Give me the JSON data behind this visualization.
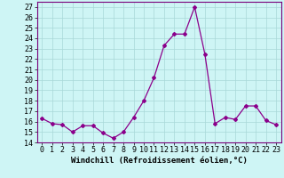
{
  "x": [
    0,
    1,
    2,
    3,
    4,
    5,
    6,
    7,
    8,
    9,
    10,
    11,
    12,
    13,
    14,
    15,
    16,
    17,
    18,
    19,
    20,
    21,
    22,
    23
  ],
  "y": [
    16.3,
    15.8,
    15.7,
    15.0,
    15.6,
    15.6,
    14.9,
    14.4,
    15.0,
    16.4,
    18.0,
    20.2,
    23.3,
    24.4,
    24.4,
    27.0,
    22.5,
    15.8,
    16.4,
    16.2,
    17.5,
    17.5,
    16.1,
    15.7
  ],
  "line_color": "#8b008b",
  "marker": "D",
  "marker_size": 2.0,
  "bg_color": "#cef5f5",
  "grid_color": "#a8d8d8",
  "xlabel": "Windchill (Refroidissement éolien,°C)",
  "xlabel_fontsize": 6.5,
  "tick_fontsize": 6.0,
  "ylim": [
    14,
    27.5
  ],
  "yticks": [
    14,
    15,
    16,
    17,
    18,
    19,
    20,
    21,
    22,
    23,
    24,
    25,
    26,
    27
  ],
  "xlim": [
    -0.5,
    23.5
  ],
  "xticks": [
    0,
    1,
    2,
    3,
    4,
    5,
    6,
    7,
    8,
    9,
    10,
    11,
    12,
    13,
    14,
    15,
    16,
    17,
    18,
    19,
    20,
    21,
    22,
    23
  ]
}
